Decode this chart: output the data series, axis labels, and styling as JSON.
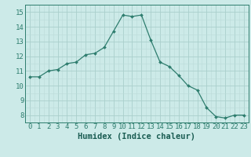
{
  "x": [
    0,
    1,
    2,
    3,
    4,
    5,
    6,
    7,
    8,
    9,
    10,
    11,
    12,
    13,
    14,
    15,
    16,
    17,
    18,
    19,
    20,
    21,
    22,
    23
  ],
  "y": [
    10.6,
    10.6,
    11.0,
    11.1,
    11.5,
    11.6,
    12.1,
    12.2,
    12.6,
    13.7,
    14.8,
    14.7,
    14.8,
    13.1,
    11.6,
    11.3,
    10.7,
    10.0,
    9.7,
    8.5,
    7.9,
    7.8,
    8.0,
    8.0
  ],
  "line_color": "#2e7d6e",
  "marker": "D",
  "marker_size": 2.0,
  "bg_color": "#cceae8",
  "grid_color_major": "#aacfcc",
  "grid_color_minor": "#bbdbd9",
  "xlabel": "Humidex (Indice chaleur)",
  "xlim": [
    -0.5,
    23.5
  ],
  "ylim": [
    7.5,
    15.5
  ],
  "yticks": [
    8,
    9,
    10,
    11,
    12,
    13,
    14,
    15
  ],
  "xticks": [
    0,
    1,
    2,
    3,
    4,
    5,
    6,
    7,
    8,
    9,
    10,
    11,
    12,
    13,
    14,
    15,
    16,
    17,
    18,
    19,
    20,
    21,
    22,
    23
  ],
  "tick_color": "#2e7d6e",
  "label_color": "#1a5c52",
  "spine_color": "#2e7d6e",
  "font_size": 6.5,
  "xlabel_fontsize": 7.5
}
